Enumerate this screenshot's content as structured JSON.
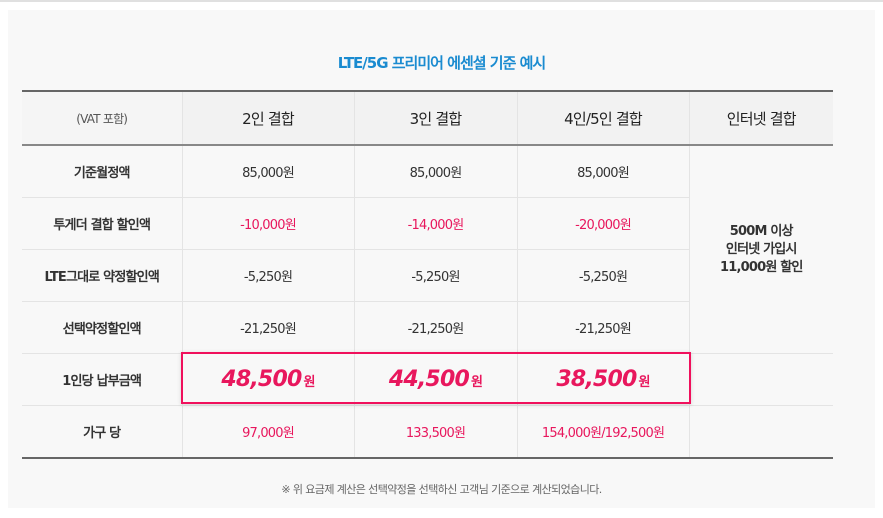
{
  "title": "LTE/5G 프리미어 에센셜 기준 예시",
  "colors": {
    "title": "#1a8bd0",
    "accent": "#e8175d",
    "highlight_border": "#f0105c"
  },
  "table": {
    "headers": [
      "(VAT 포함)",
      "2인 결합",
      "3인 결합",
      "4인/5인 결합",
      "인터넷 결합"
    ],
    "rows": [
      {
        "label": "기준월정액",
        "values": [
          "85,000원",
          "85,000원",
          "85,000원"
        ]
      },
      {
        "label": "투게더 결합 할인액",
        "values": [
          "-10,000원",
          "-14,000원",
          "-20,000원"
        ]
      },
      {
        "label": "LTE그대로 약정할인액",
        "values": [
          "-5,250원",
          "-5,250원",
          "-5,250원"
        ]
      },
      {
        "label": "선택약정할인액",
        "values": [
          "-21,250원",
          "-21,250원",
          "-21,250원"
        ]
      },
      {
        "label": "1인당 납부금액",
        "values": [
          "48,500",
          "44,500",
          "38,500"
        ],
        "unit": "원"
      },
      {
        "label": "가구 당",
        "values": [
          "97,000원",
          "133,500원",
          "154,000원/192,500원"
        ]
      }
    ],
    "internet": [
      "500M 이상",
      "인터넷 가입시",
      "11,000원 할인"
    ]
  },
  "note": "※ 위 요금제 계산은 선택약정을 선택하신 고객님 기준으로 계산되었습니다."
}
